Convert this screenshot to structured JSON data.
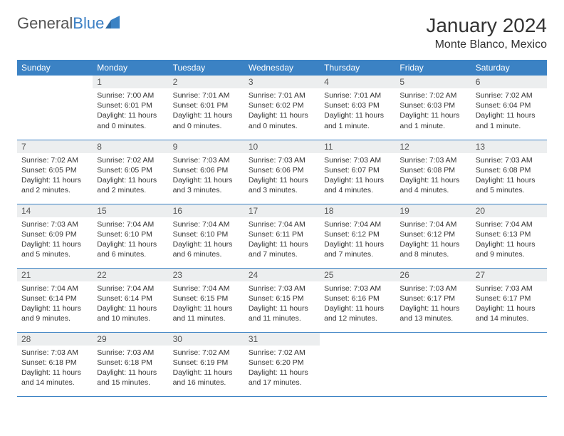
{
  "logo": {
    "text1": "General",
    "text2": "Blue"
  },
  "title": "January 2024",
  "location": "Monte Blanco, Mexico",
  "colors": {
    "header_bg": "#3b82c4",
    "header_text": "#ffffff",
    "daynum_bg": "#eceeef",
    "border": "#3b82c4",
    "logo_gray": "#555555",
    "logo_blue": "#3b7fc4"
  },
  "weekdays": [
    "Sunday",
    "Monday",
    "Tuesday",
    "Wednesday",
    "Thursday",
    "Friday",
    "Saturday"
  ],
  "weeks": [
    [
      null,
      {
        "n": "1",
        "r": "7:00 AM",
        "s": "6:01 PM",
        "d": "11 hours and 0 minutes."
      },
      {
        "n": "2",
        "r": "7:01 AM",
        "s": "6:01 PM",
        "d": "11 hours and 0 minutes."
      },
      {
        "n": "3",
        "r": "7:01 AM",
        "s": "6:02 PM",
        "d": "11 hours and 0 minutes."
      },
      {
        "n": "4",
        "r": "7:01 AM",
        "s": "6:03 PM",
        "d": "11 hours and 1 minute."
      },
      {
        "n": "5",
        "r": "7:02 AM",
        "s": "6:03 PM",
        "d": "11 hours and 1 minute."
      },
      {
        "n": "6",
        "r": "7:02 AM",
        "s": "6:04 PM",
        "d": "11 hours and 1 minute."
      }
    ],
    [
      {
        "n": "7",
        "r": "7:02 AM",
        "s": "6:05 PM",
        "d": "11 hours and 2 minutes."
      },
      {
        "n": "8",
        "r": "7:02 AM",
        "s": "6:05 PM",
        "d": "11 hours and 2 minutes."
      },
      {
        "n": "9",
        "r": "7:03 AM",
        "s": "6:06 PM",
        "d": "11 hours and 3 minutes."
      },
      {
        "n": "10",
        "r": "7:03 AM",
        "s": "6:06 PM",
        "d": "11 hours and 3 minutes."
      },
      {
        "n": "11",
        "r": "7:03 AM",
        "s": "6:07 PM",
        "d": "11 hours and 4 minutes."
      },
      {
        "n": "12",
        "r": "7:03 AM",
        "s": "6:08 PM",
        "d": "11 hours and 4 minutes."
      },
      {
        "n": "13",
        "r": "7:03 AM",
        "s": "6:08 PM",
        "d": "11 hours and 5 minutes."
      }
    ],
    [
      {
        "n": "14",
        "r": "7:03 AM",
        "s": "6:09 PM",
        "d": "11 hours and 5 minutes."
      },
      {
        "n": "15",
        "r": "7:04 AM",
        "s": "6:10 PM",
        "d": "11 hours and 6 minutes."
      },
      {
        "n": "16",
        "r": "7:04 AM",
        "s": "6:10 PM",
        "d": "11 hours and 6 minutes."
      },
      {
        "n": "17",
        "r": "7:04 AM",
        "s": "6:11 PM",
        "d": "11 hours and 7 minutes."
      },
      {
        "n": "18",
        "r": "7:04 AM",
        "s": "6:12 PM",
        "d": "11 hours and 7 minutes."
      },
      {
        "n": "19",
        "r": "7:04 AM",
        "s": "6:12 PM",
        "d": "11 hours and 8 minutes."
      },
      {
        "n": "20",
        "r": "7:04 AM",
        "s": "6:13 PM",
        "d": "11 hours and 9 minutes."
      }
    ],
    [
      {
        "n": "21",
        "r": "7:04 AM",
        "s": "6:14 PM",
        "d": "11 hours and 9 minutes."
      },
      {
        "n": "22",
        "r": "7:04 AM",
        "s": "6:14 PM",
        "d": "11 hours and 10 minutes."
      },
      {
        "n": "23",
        "r": "7:04 AM",
        "s": "6:15 PM",
        "d": "11 hours and 11 minutes."
      },
      {
        "n": "24",
        "r": "7:03 AM",
        "s": "6:15 PM",
        "d": "11 hours and 11 minutes."
      },
      {
        "n": "25",
        "r": "7:03 AM",
        "s": "6:16 PM",
        "d": "11 hours and 12 minutes."
      },
      {
        "n": "26",
        "r": "7:03 AM",
        "s": "6:17 PM",
        "d": "11 hours and 13 minutes."
      },
      {
        "n": "27",
        "r": "7:03 AM",
        "s": "6:17 PM",
        "d": "11 hours and 14 minutes."
      }
    ],
    [
      {
        "n": "28",
        "r": "7:03 AM",
        "s": "6:18 PM",
        "d": "11 hours and 14 minutes."
      },
      {
        "n": "29",
        "r": "7:03 AM",
        "s": "6:18 PM",
        "d": "11 hours and 15 minutes."
      },
      {
        "n": "30",
        "r": "7:02 AM",
        "s": "6:19 PM",
        "d": "11 hours and 16 minutes."
      },
      {
        "n": "31",
        "r": "7:02 AM",
        "s": "6:20 PM",
        "d": "11 hours and 17 minutes."
      },
      null,
      null,
      null
    ]
  ],
  "labels": {
    "sunrise": "Sunrise:",
    "sunset": "Sunset:",
    "daylight": "Daylight:"
  }
}
